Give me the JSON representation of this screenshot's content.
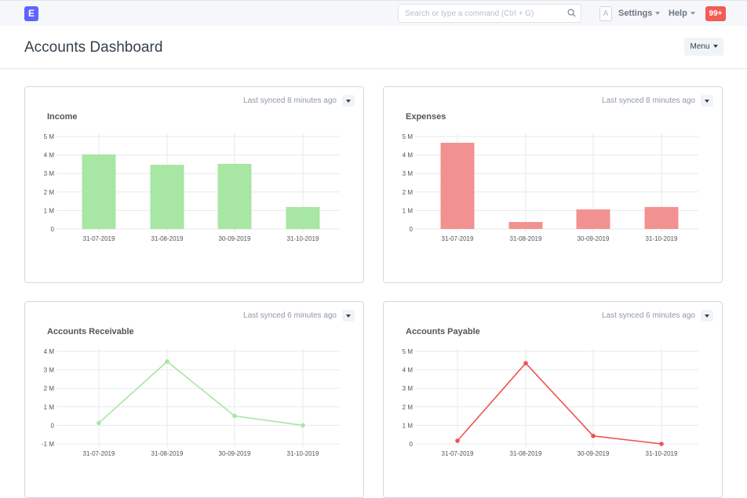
{
  "navbar": {
    "logo": "E",
    "search_placeholder": "Search or type a command (Ctrl + G)",
    "avatar": "A",
    "settings": "Settings",
    "help": "Help",
    "notifications": "99+"
  },
  "page": {
    "title": "Accounts Dashboard",
    "menu": "Menu"
  },
  "colors": {
    "green": "#a8e6a3",
    "red": "#f29290",
    "red_line": "#ef5350",
    "brand": "#5e64ff"
  },
  "cards": [
    {
      "synced": "Last synced 8 minutes ago",
      "title": "Income"
    },
    {
      "synced": "Last synced 8 minutes ago",
      "title": "Expenses"
    },
    {
      "synced": "Last synced 6 minutes ago",
      "title": "Accounts Receivable"
    },
    {
      "synced": "Last synced 6 minutes ago",
      "title": "Accounts Payable"
    }
  ],
  "chart_data": [
    {
      "type": "bar",
      "title": "Income",
      "categories": [
        "31-07-2019",
        "31-08-2019",
        "30-09-2019",
        "31-10-2019"
      ],
      "values": [
        4.03,
        3.47,
        3.52,
        1.19
      ],
      "ylim": [
        0,
        5
      ],
      "yticks": [
        "0",
        "1 M",
        "2 M",
        "3 M",
        "4 M",
        "5 M"
      ],
      "color": "#a8e6a3",
      "grid": true
    },
    {
      "type": "bar",
      "title": "Expenses",
      "categories": [
        "31-07-2019",
        "31-08-2019",
        "30-09-2019",
        "31-10-2019"
      ],
      "values": [
        4.66,
        0.38,
        1.06,
        1.19
      ],
      "ylim": [
        0,
        5
      ],
      "yticks": [
        "0",
        "1 M",
        "2 M",
        "3 M",
        "4 M",
        "5 M"
      ],
      "color": "#f29290",
      "grid": true
    },
    {
      "type": "line",
      "title": "Accounts Receivable",
      "categories": [
        "31-07-2019",
        "31-08-2019",
        "30-09-2019",
        "31-10-2019"
      ],
      "values": [
        0.13,
        3.45,
        0.51,
        0
      ],
      "ylim": [
        -1,
        4
      ],
      "yticks": [
        "-1 M",
        "0",
        "1 M",
        "2 M",
        "3 M",
        "4 M"
      ],
      "color": "#a8e6a3",
      "grid": true
    },
    {
      "type": "line",
      "title": "Accounts Payable",
      "categories": [
        "31-07-2019",
        "31-08-2019",
        "30-09-2019",
        "31-10-2019"
      ],
      "values": [
        0.17,
        4.36,
        0.43,
        0
      ],
      "ylim": [
        0,
        5
      ],
      "yticks": [
        "0",
        "1 M",
        "2 M",
        "3 M",
        "4 M",
        "5 M"
      ],
      "color": "#ef5350",
      "grid": true
    }
  ]
}
